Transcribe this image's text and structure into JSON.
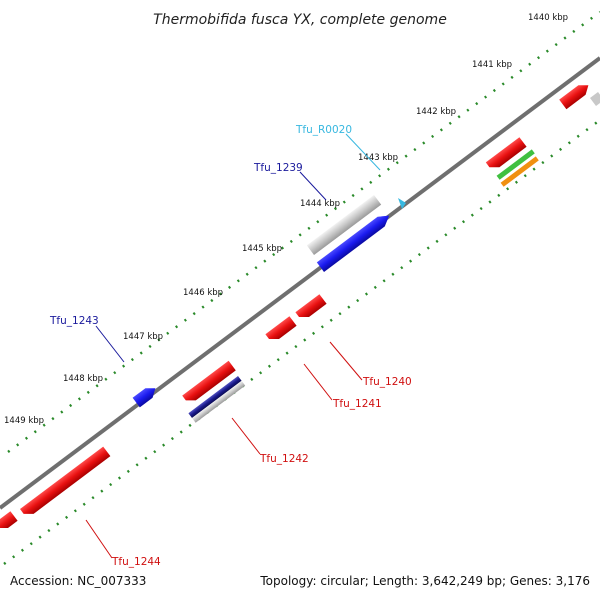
{
  "title": "Thermobifida fusca YX, complete genome",
  "footer": {
    "accession": "Accession: NC_007333",
    "summary": "Topology: circular; Length: 3,642,249 bp; Genes: 3,176"
  },
  "colors": {
    "backbone": "#6f6f6f",
    "tick_dots": "#2a8a2a",
    "forward_gene": "#e81010",
    "reverse_gene": "#e81010",
    "highlight_blue": "#1a1aee",
    "highlight_navy": "#1a1a8c",
    "highlight_gray": "#c8c8c8",
    "rrna_cyan": "#38b8e0",
    "green_gene": "#40c040",
    "orange_gene": "#f09010"
  },
  "kbp_labels": [
    "1440 kbp",
    "1441 kbp",
    "1442 kbp",
    "1443 kbp",
    "1444 kbp",
    "1445 kbp",
    "1446 kbp",
    "1447 kbp",
    "1448 kbp",
    "1449 kbp"
  ],
  "gene_labels": [
    {
      "name": "Tfu_R0020",
      "color": "#38b8e0"
    },
    {
      "name": "Tfu_1239",
      "color": "#1a1a9c"
    },
    {
      "name": "Tfu_1243",
      "color": "#1a1a9c"
    },
    {
      "name": "Tfu_1240",
      "color": "#d01010"
    },
    {
      "name": "Tfu_1241",
      "color": "#d01010"
    },
    {
      "name": "Tfu_1242",
      "color": "#d01010"
    },
    {
      "name": "Tfu_1244",
      "color": "#d01010"
    }
  ]
}
